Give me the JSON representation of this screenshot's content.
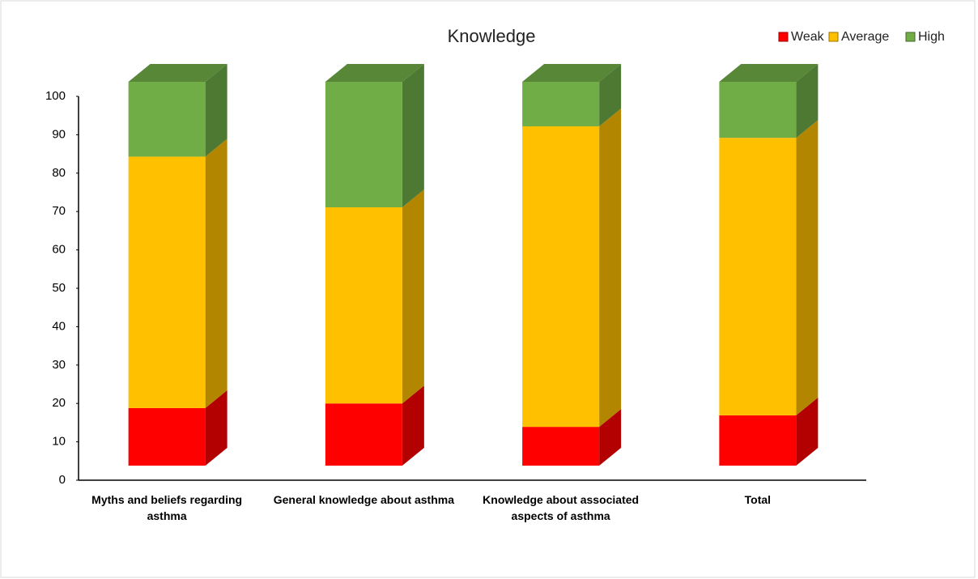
{
  "chart_data": {
    "type": "bar3d_stacked",
    "title": "Knowledge",
    "categories": [
      "Myths and beliefs regarding asthma",
      "General knowledge about asthma",
      "Knowledge about associated aspects of asthma",
      "Total"
    ],
    "series": [
      {
        "name": "Weak",
        "color": "#ff0000",
        "values": [
          15,
          16.2,
          10.1,
          13.1
        ]
      },
      {
        "name": "Average",
        "color": "#ffc000",
        "values": [
          65.5,
          51.1,
          78.3,
          72.3
        ]
      },
      {
        "name": "High",
        "color": "#70ad47",
        "values": [
          19.5,
          32.7,
          11.6,
          14.6
        ]
      }
    ],
    "ylim": [
      0,
      100
    ],
    "yticks": [
      0,
      10,
      20,
      30,
      40,
      50,
      60,
      70,
      80,
      90,
      100
    ],
    "legend": "top-right"
  }
}
